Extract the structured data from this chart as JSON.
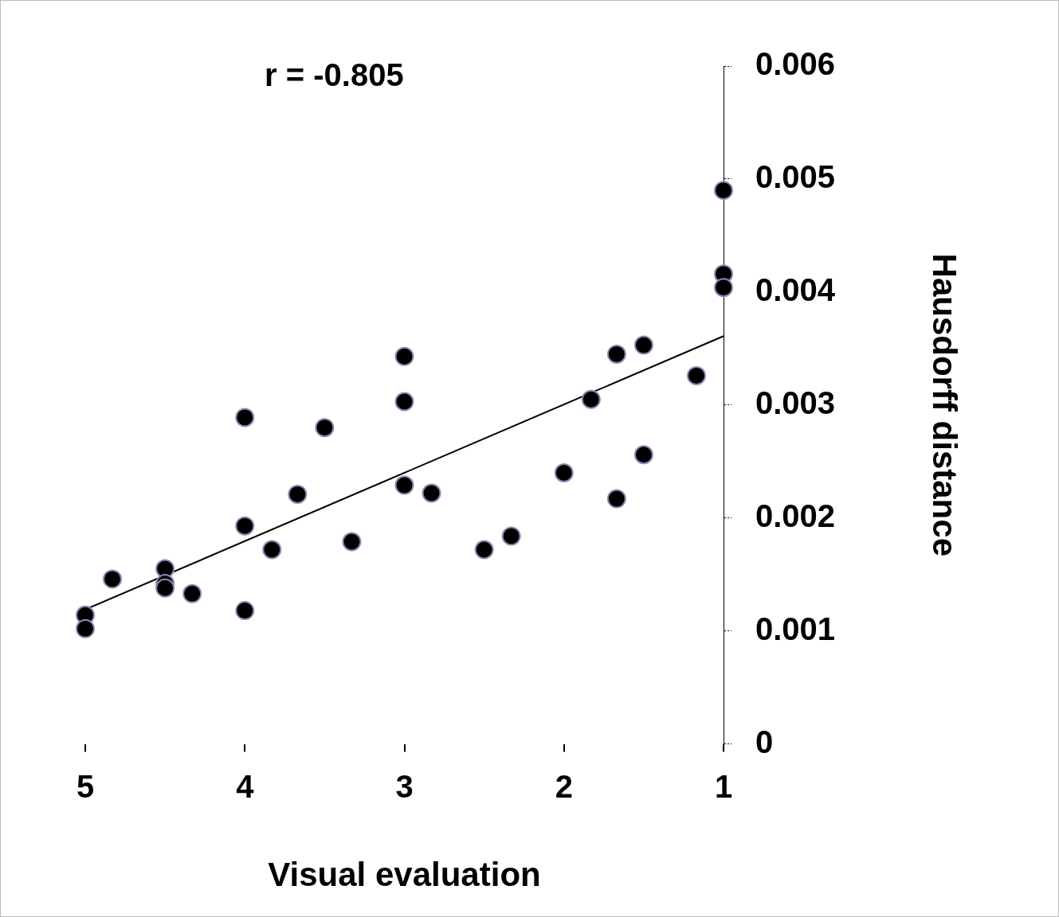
{
  "chart_data": {
    "type": "scatter",
    "xlabel": "Visual evaluation",
    "ylabel": "Hausdorff distance",
    "annotations": [
      "r = -0.805"
    ],
    "xlim": [
      5,
      1
    ],
    "xticks": [
      5,
      4,
      3,
      2,
      1
    ],
    "ylim": [
      0,
      0.006
    ],
    "yticks": [
      0,
      0.001,
      0.002,
      0.003,
      0.004,
      0.005,
      0.006
    ],
    "grid": false,
    "legend": false,
    "marker": "circle",
    "series": [
      {
        "color": "#000000",
        "x": [
          1,
          1,
          1,
          1.17,
          1.5,
          1.67,
          1.83,
          2,
          1.5,
          1.67,
          2.33,
          2.5,
          2.83,
          3,
          3,
          3,
          3.33,
          3.5,
          3.67,
          3.83,
          4,
          4,
          4,
          4.33,
          4.5,
          4.5,
          4.5,
          4.83,
          5,
          5
        ],
        "values": [
          0.0049,
          0.00416,
          0.00404,
          0.00326,
          0.00353,
          0.00345,
          0.00305,
          0.0024,
          0.00256,
          0.00217,
          0.00184,
          0.00172,
          0.00222,
          0.00343,
          0.00303,
          0.00229,
          0.00179,
          0.0028,
          0.00221,
          0.00172,
          0.00289,
          0.00193,
          0.00118,
          0.00133,
          0.00155,
          0.00142,
          0.00138,
          0.00146,
          0.00114,
          0.00102
        ]
      },
      {
        "type": "line",
        "color": "#000000",
        "x": [
          5,
          1
        ],
        "values": [
          0.00119,
          0.00361
        ],
        "marker": "none",
        "line_style": "solid"
      }
    ]
  }
}
